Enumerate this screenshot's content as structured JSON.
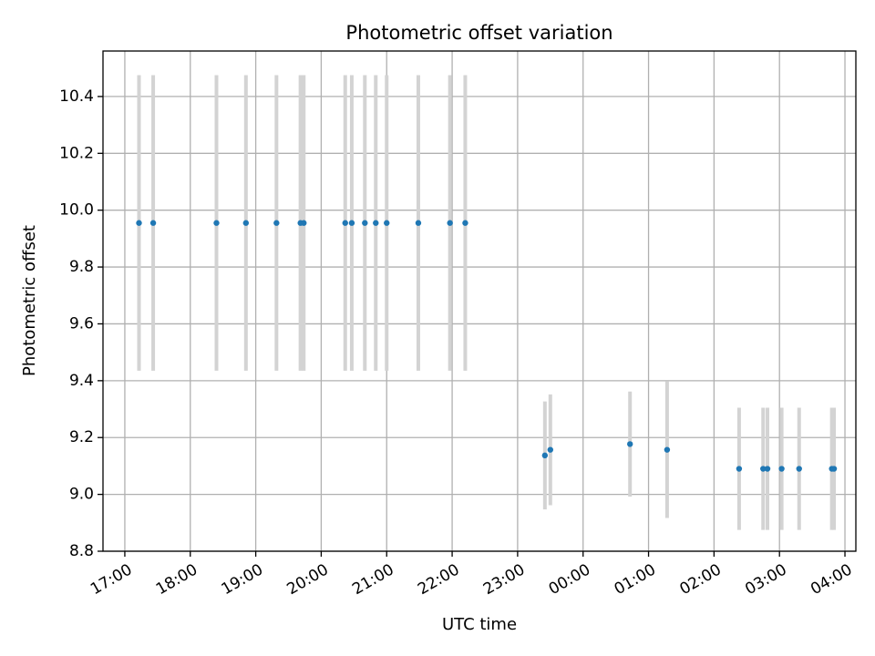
{
  "chart_data": {
    "type": "scatter",
    "title": "Photometric offset variation",
    "xlabel": "UTC time",
    "ylabel": "Photometric offset",
    "x_unit": "UTC time",
    "xlim": [
      "16:40",
      "04:10"
    ],
    "ylim": [
      8.8,
      10.56
    ],
    "x_ticks": [
      "17:00",
      "18:00",
      "19:00",
      "20:00",
      "21:00",
      "22:00",
      "23:00",
      "00:00",
      "01:00",
      "02:00",
      "03:00",
      "04:00"
    ],
    "y_ticks": [
      "8.8",
      "9.0",
      "9.2",
      "9.4",
      "9.6",
      "9.8",
      "10.0",
      "10.2",
      "10.4"
    ],
    "grid": true,
    "point_color": "#1f77b4",
    "errorbar_color": "#d3d3d3",
    "points": [
      {
        "x": "17:13",
        "y": 9.955,
        "err": 0.52
      },
      {
        "x": "17:26",
        "y": 9.955,
        "err": 0.52
      },
      {
        "x": "18:24",
        "y": 9.955,
        "err": 0.52
      },
      {
        "x": "18:51",
        "y": 9.955,
        "err": 0.52
      },
      {
        "x": "19:19",
        "y": 9.955,
        "err": 0.52
      },
      {
        "x": "19:41",
        "y": 9.955,
        "err": 0.52
      },
      {
        "x": "19:44",
        "y": 9.955,
        "err": 0.52
      },
      {
        "x": "20:22",
        "y": 9.955,
        "err": 0.52
      },
      {
        "x": "20:28",
        "y": 9.955,
        "err": 0.52
      },
      {
        "x": "20:40",
        "y": 9.955,
        "err": 0.52
      },
      {
        "x": "20:50",
        "y": 9.955,
        "err": 0.52
      },
      {
        "x": "21:00",
        "y": 9.955,
        "err": 0.52
      },
      {
        "x": "21:29",
        "y": 9.955,
        "err": 0.52
      },
      {
        "x": "21:58",
        "y": 9.955,
        "err": 0.52
      },
      {
        "x": "22:12",
        "y": 9.955,
        "err": 0.52
      },
      {
        "x": "23:25",
        "y": 9.137,
        "err": 0.19
      },
      {
        "x": "23:30",
        "y": 9.157,
        "err": 0.195
      },
      {
        "x": "00:43",
        "y": 9.177,
        "err": 0.185
      },
      {
        "x": "01:17",
        "y": 9.157,
        "err": 0.24
      },
      {
        "x": "02:23",
        "y": 9.09,
        "err": 0.215
      },
      {
        "x": "02:45",
        "y": 9.09,
        "err": 0.215
      },
      {
        "x": "02:49",
        "y": 9.09,
        "err": 0.215
      },
      {
        "x": "03:02",
        "y": 9.09,
        "err": 0.215
      },
      {
        "x": "03:18",
        "y": 9.09,
        "err": 0.215
      },
      {
        "x": "03:48",
        "y": 9.09,
        "err": 0.215
      },
      {
        "x": "03:50",
        "y": 9.09,
        "err": 0.215
      }
    ]
  }
}
